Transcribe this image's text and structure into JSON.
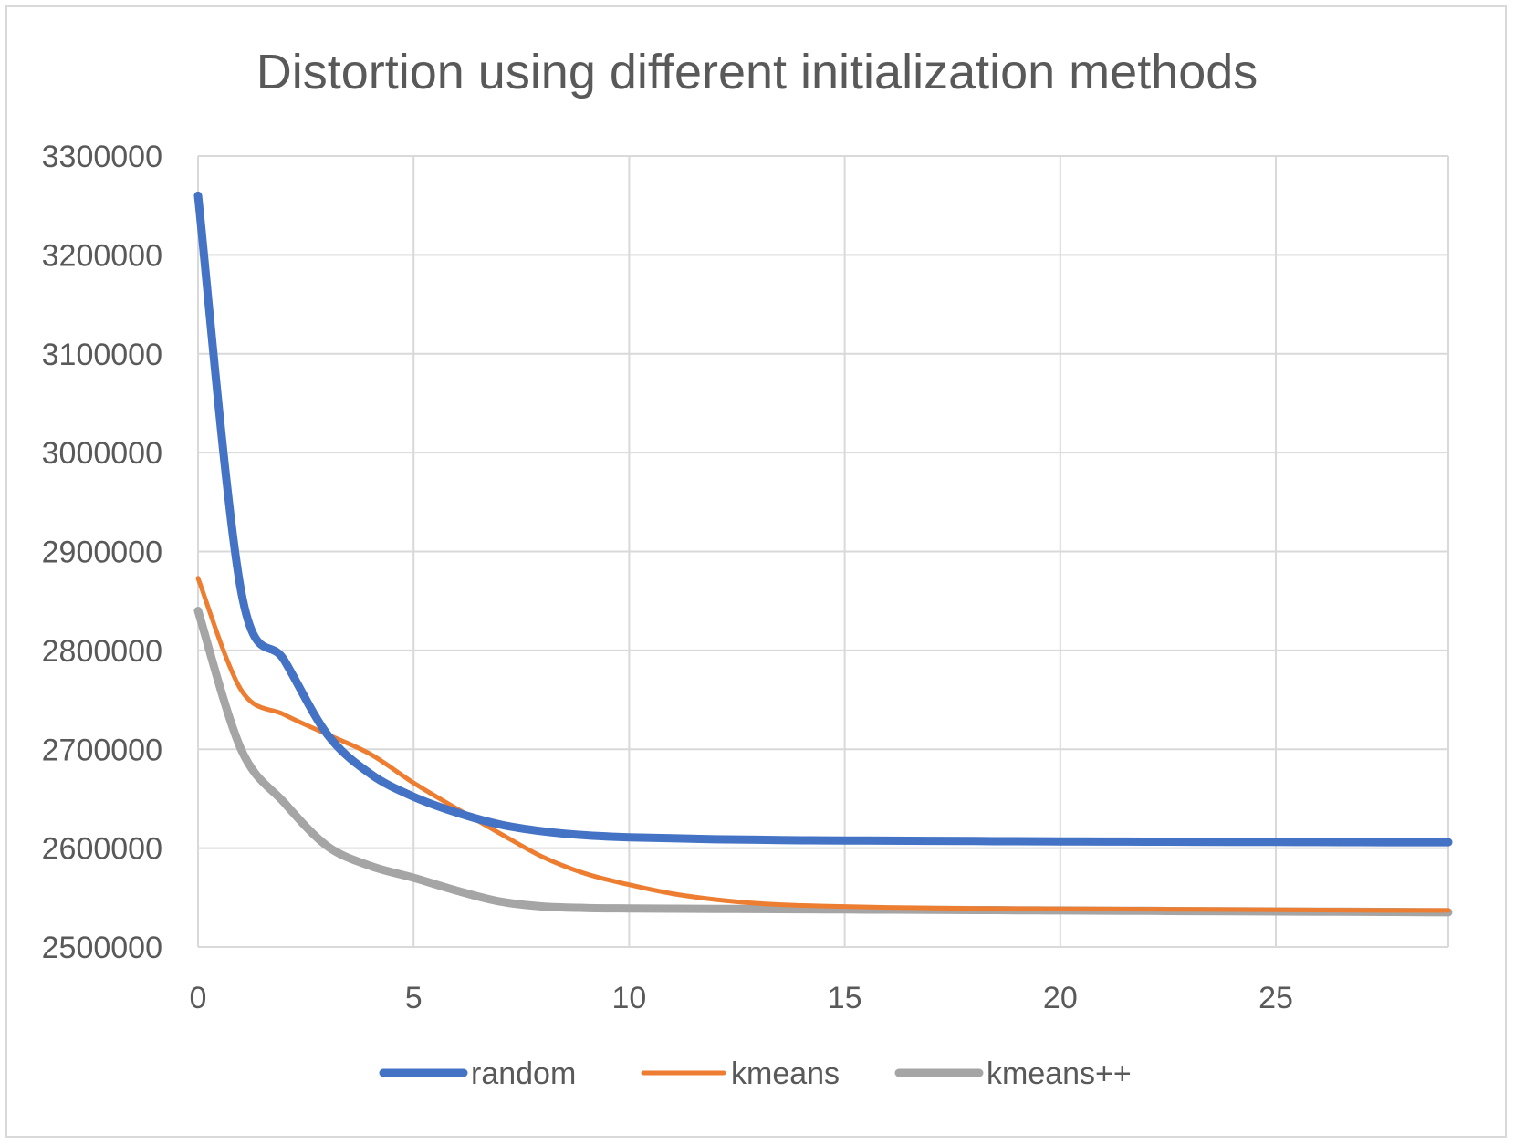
{
  "chart_data": {
    "type": "line",
    "title": "Distortion using different initialization methods",
    "xlabel": "",
    "ylabel": "",
    "xlim": [
      0,
      29
    ],
    "ylim": [
      2500000,
      3300000
    ],
    "x_ticks": [
      0,
      5,
      10,
      15,
      20,
      25
    ],
    "y_ticks": [
      2500000,
      2600000,
      2700000,
      2800000,
      2900000,
      3000000,
      3100000,
      3200000,
      3300000
    ],
    "grid": true,
    "legend_position": "bottom",
    "x": [
      0,
      1,
      2,
      3,
      4,
      5,
      6,
      7,
      8,
      9,
      10,
      11,
      12,
      13,
      14,
      15,
      16,
      17,
      18,
      19,
      20,
      21,
      22,
      23,
      24,
      25,
      26,
      27,
      28,
      29
    ],
    "series": [
      {
        "name": "random",
        "color": "#4472c4",
        "values": [
          3260000,
          2860000,
          2790000,
          2715000,
          2675000,
          2652000,
          2636000,
          2624000,
          2617000,
          2613000,
          2611000,
          2610000,
          2609000,
          2608500,
          2608000,
          2607800,
          2607600,
          2607400,
          2607200,
          2607000,
          2606800,
          2606700,
          2606600,
          2606500,
          2606400,
          2606300,
          2606200,
          2606100,
          2606000,
          2606000
        ]
      },
      {
        "name": "kmeans",
        "color": "#ed7d31",
        "values": [
          2873000,
          2760000,
          2735000,
          2715000,
          2695000,
          2666000,
          2640000,
          2615000,
          2591000,
          2574000,
          2563000,
          2554000,
          2548000,
          2544000,
          2542000,
          2541000,
          2540000,
          2539500,
          2539000,
          2538800,
          2538600,
          2538400,
          2538200,
          2538000,
          2537800,
          2537600,
          2537400,
          2537200,
          2537000,
          2537000
        ]
      },
      {
        "name": "kmeans++",
        "color": "#a5a5a5",
        "values": [
          2840000,
          2700000,
          2646000,
          2602000,
          2582000,
          2570000,
          2557000,
          2546000,
          2541000,
          2539500,
          2539000,
          2538800,
          2538600,
          2538400,
          2538200,
          2538000,
          2537800,
          2537600,
          2537400,
          2537200,
          2537000,
          2536800,
          2536600,
          2536400,
          2536200,
          2536000,
          2535800,
          2535600,
          2535400,
          2535200
        ]
      }
    ]
  }
}
